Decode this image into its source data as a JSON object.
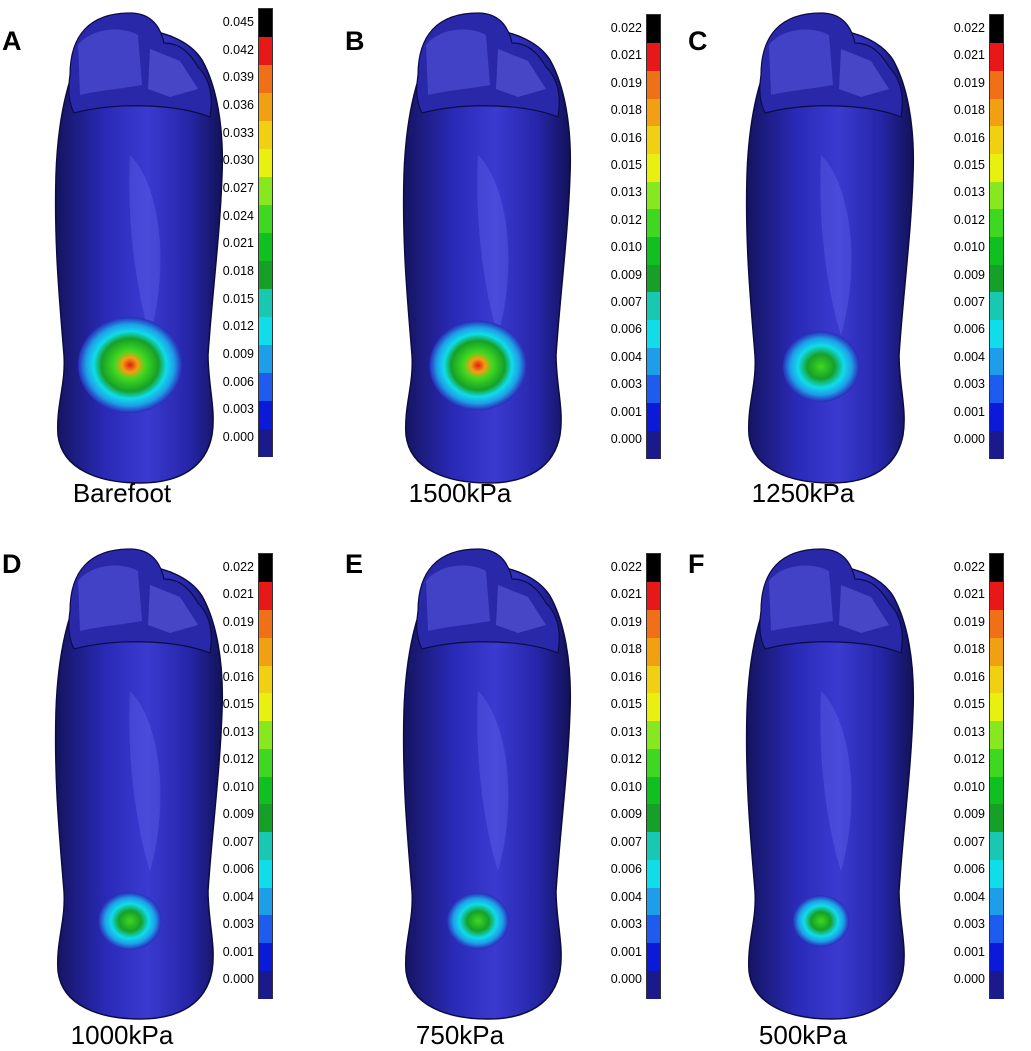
{
  "colors": [
    "#1a1a8c",
    "#0a1ad8",
    "#1e5cf0",
    "#1e9ee8",
    "#10dcea",
    "#18c8b0",
    "#16a028",
    "#10c020",
    "#3ed820",
    "#88e820",
    "#e8f010",
    "#f0d010",
    "#f0a010",
    "#f07018",
    "#e81818",
    "#000000"
  ],
  "panels": [
    {
      "letter": "A",
      "caption": "Barefoot",
      "hotspot": 1.0,
      "ticks": [
        "0.045",
        "0.042",
        "0.039",
        "0.036",
        "0.033",
        "0.030",
        "0.027",
        "0.024",
        "0.021",
        "0.018",
        "0.015",
        "0.012",
        "0.009",
        "0.006",
        "0.003",
        "0.000"
      ]
    },
    {
      "letter": "B",
      "caption": "1500kPa",
      "hotspot": 0.9,
      "ticks": [
        "0.022",
        "0.021",
        "0.019",
        "0.018",
        "0.016",
        "0.015",
        "0.013",
        "0.012",
        "0.010",
        "0.009",
        "0.007",
        "0.006",
        "0.004",
        "0.003",
        "0.001",
        "0.000"
      ]
    },
    {
      "letter": "C",
      "caption": "1250kPa",
      "hotspot": 0.6,
      "ticks": [
        "0.022",
        "0.021",
        "0.019",
        "0.018",
        "0.016",
        "0.015",
        "0.013",
        "0.012",
        "0.010",
        "0.009",
        "0.007",
        "0.006",
        "0.004",
        "0.003",
        "0.001",
        "0.000"
      ]
    },
    {
      "letter": "D",
      "caption": "1000kPa",
      "hotspot": 0.4,
      "ticks": [
        "0.022",
        "0.021",
        "0.019",
        "0.018",
        "0.016",
        "0.015",
        "0.013",
        "0.012",
        "0.010",
        "0.009",
        "0.007",
        "0.006",
        "0.004",
        "0.003",
        "0.001",
        "0.000"
      ]
    },
    {
      "letter": "E",
      "caption": "750kPa",
      "hotspot": 0.38,
      "ticks": [
        "0.022",
        "0.021",
        "0.019",
        "0.018",
        "0.016",
        "0.015",
        "0.013",
        "0.012",
        "0.010",
        "0.009",
        "0.007",
        "0.006",
        "0.004",
        "0.003",
        "0.001",
        "0.000"
      ]
    },
    {
      "letter": "F",
      "caption": "500kPa",
      "hotspot": 0.3,
      "ticks": [
        "0.022",
        "0.021",
        "0.019",
        "0.018",
        "0.016",
        "0.015",
        "0.013",
        "0.012",
        "0.010",
        "0.009",
        "0.007",
        "0.006",
        "0.004",
        "0.003",
        "0.001",
        "0.000"
      ]
    }
  ]
}
